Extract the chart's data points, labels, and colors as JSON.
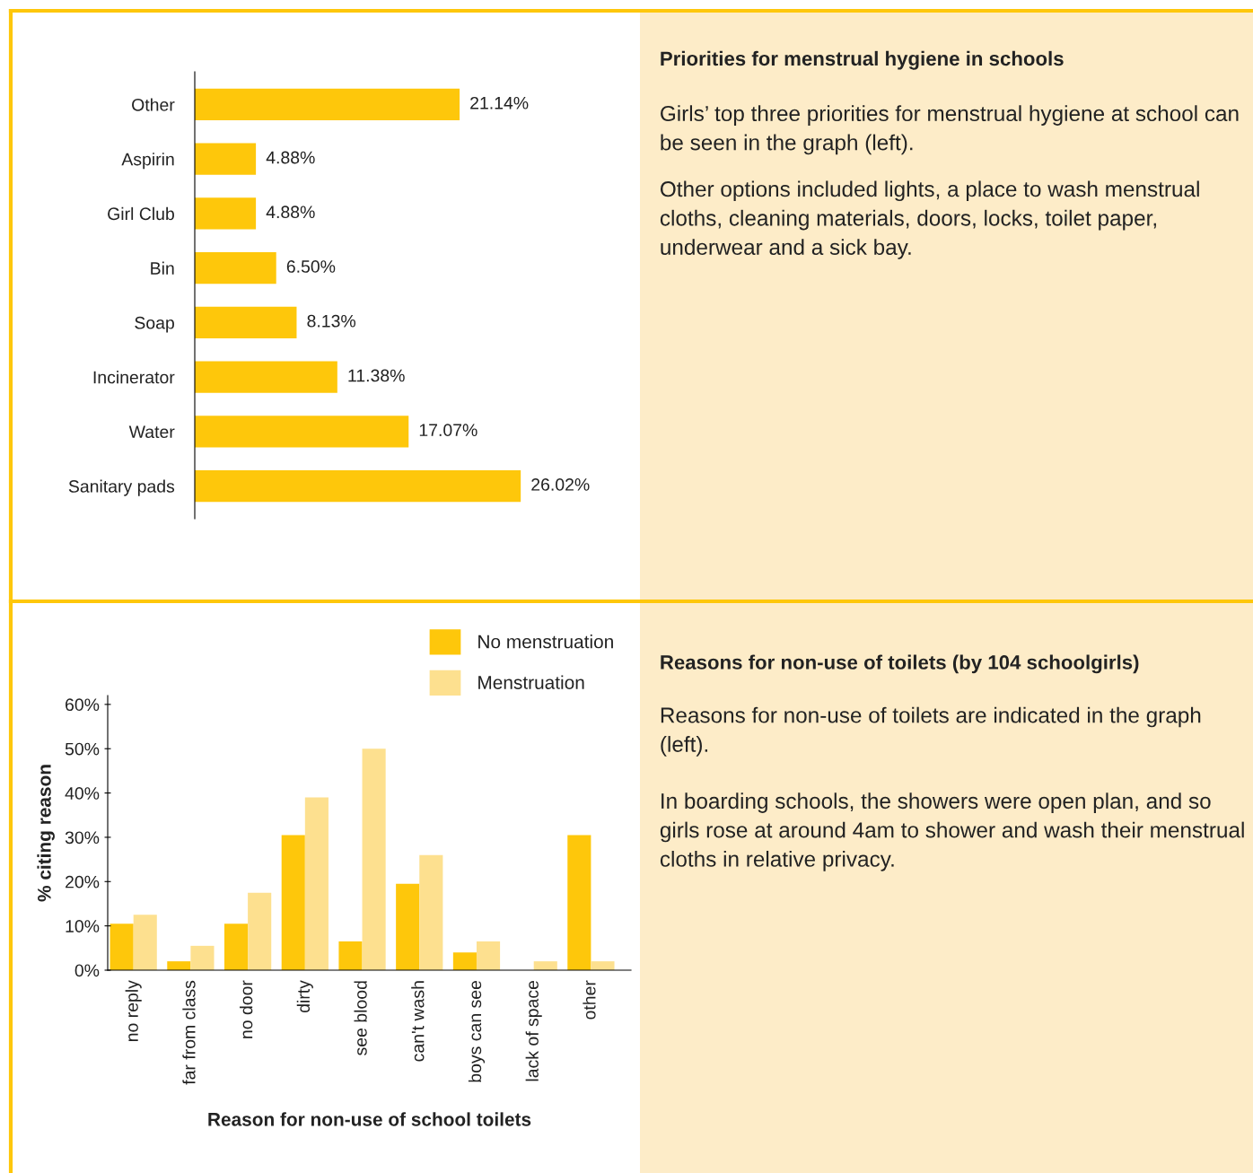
{
  "chart_data": [
    {
      "type": "bar",
      "orientation": "horizontal",
      "categories": [
        "Other",
        "Aspirin",
        "Girl Club",
        "Bin",
        "Soap",
        "Incinerator",
        "Water",
        "Sanitary pads"
      ],
      "values": [
        21.14,
        4.88,
        4.88,
        6.5,
        8.13,
        11.38,
        17.07,
        26.02
      ],
      "value_labels": [
        "21.14%",
        "4.88%",
        "4.88%",
        "6.50%",
        "8.13%",
        "11.38%",
        "17.07%",
        "26.02%"
      ],
      "color": "#fec70b",
      "grid": false
    },
    {
      "type": "other",
      "title": "Priorities for menstrual hygiene in schools",
      "annotations": [
        "Girls’ top three priorities for menstrual hygiene at school can be seen in the graph (left).",
        "Other options included lights, a place to wash menstrual cloths, cleaning materials, doors, locks, toilet paper, underwear and a sick bay."
      ]
    },
    {
      "type": "bar",
      "xlabel": "Reason for non-use of school toilets",
      "ylabel": "% citing reason",
      "categories": [
        "no reply",
        "far from class",
        "no door",
        "dirty",
        "see blood",
        "can't wash",
        "boys can see",
        "lack of space",
        "other"
      ],
      "series": [
        {
          "name": "No menstruation",
          "color": "#fec70b",
          "values": [
            10.5,
            2,
            10.5,
            30.5,
            6.5,
            19.5,
            4,
            null,
            30.5
          ]
        },
        {
          "name": "Menstruation",
          "color": "#fde08f",
          "values": [
            12.5,
            5.5,
            17.5,
            39,
            50,
            26,
            6.5,
            2,
            2
          ]
        }
      ],
      "ylim": [
        0,
        62
      ],
      "yticks": [
        {
          "value": 0,
          "label": "0%"
        },
        {
          "value": 10,
          "label": "10%"
        },
        {
          "value": 20,
          "label": "20%"
        },
        {
          "value": 30,
          "label": "30%"
        },
        {
          "value": 40,
          "label": "40%"
        },
        {
          "value": 50,
          "label": "50%"
        },
        {
          "value": 60,
          "label": "60%"
        }
      ],
      "grid": false,
      "legend": "top right"
    },
    {
      "type": "other",
      "title": "Reasons for non-use of toilets (by 104 schoolgirls)",
      "annotations": [
        "Reasons for non-use of toilets are indicated in the graph (left).",
        "In boarding schools, the showers were open plan, and so girls rose at around 4am to shower and wash their menstrual cloths in relative privacy."
      ]
    }
  ]
}
